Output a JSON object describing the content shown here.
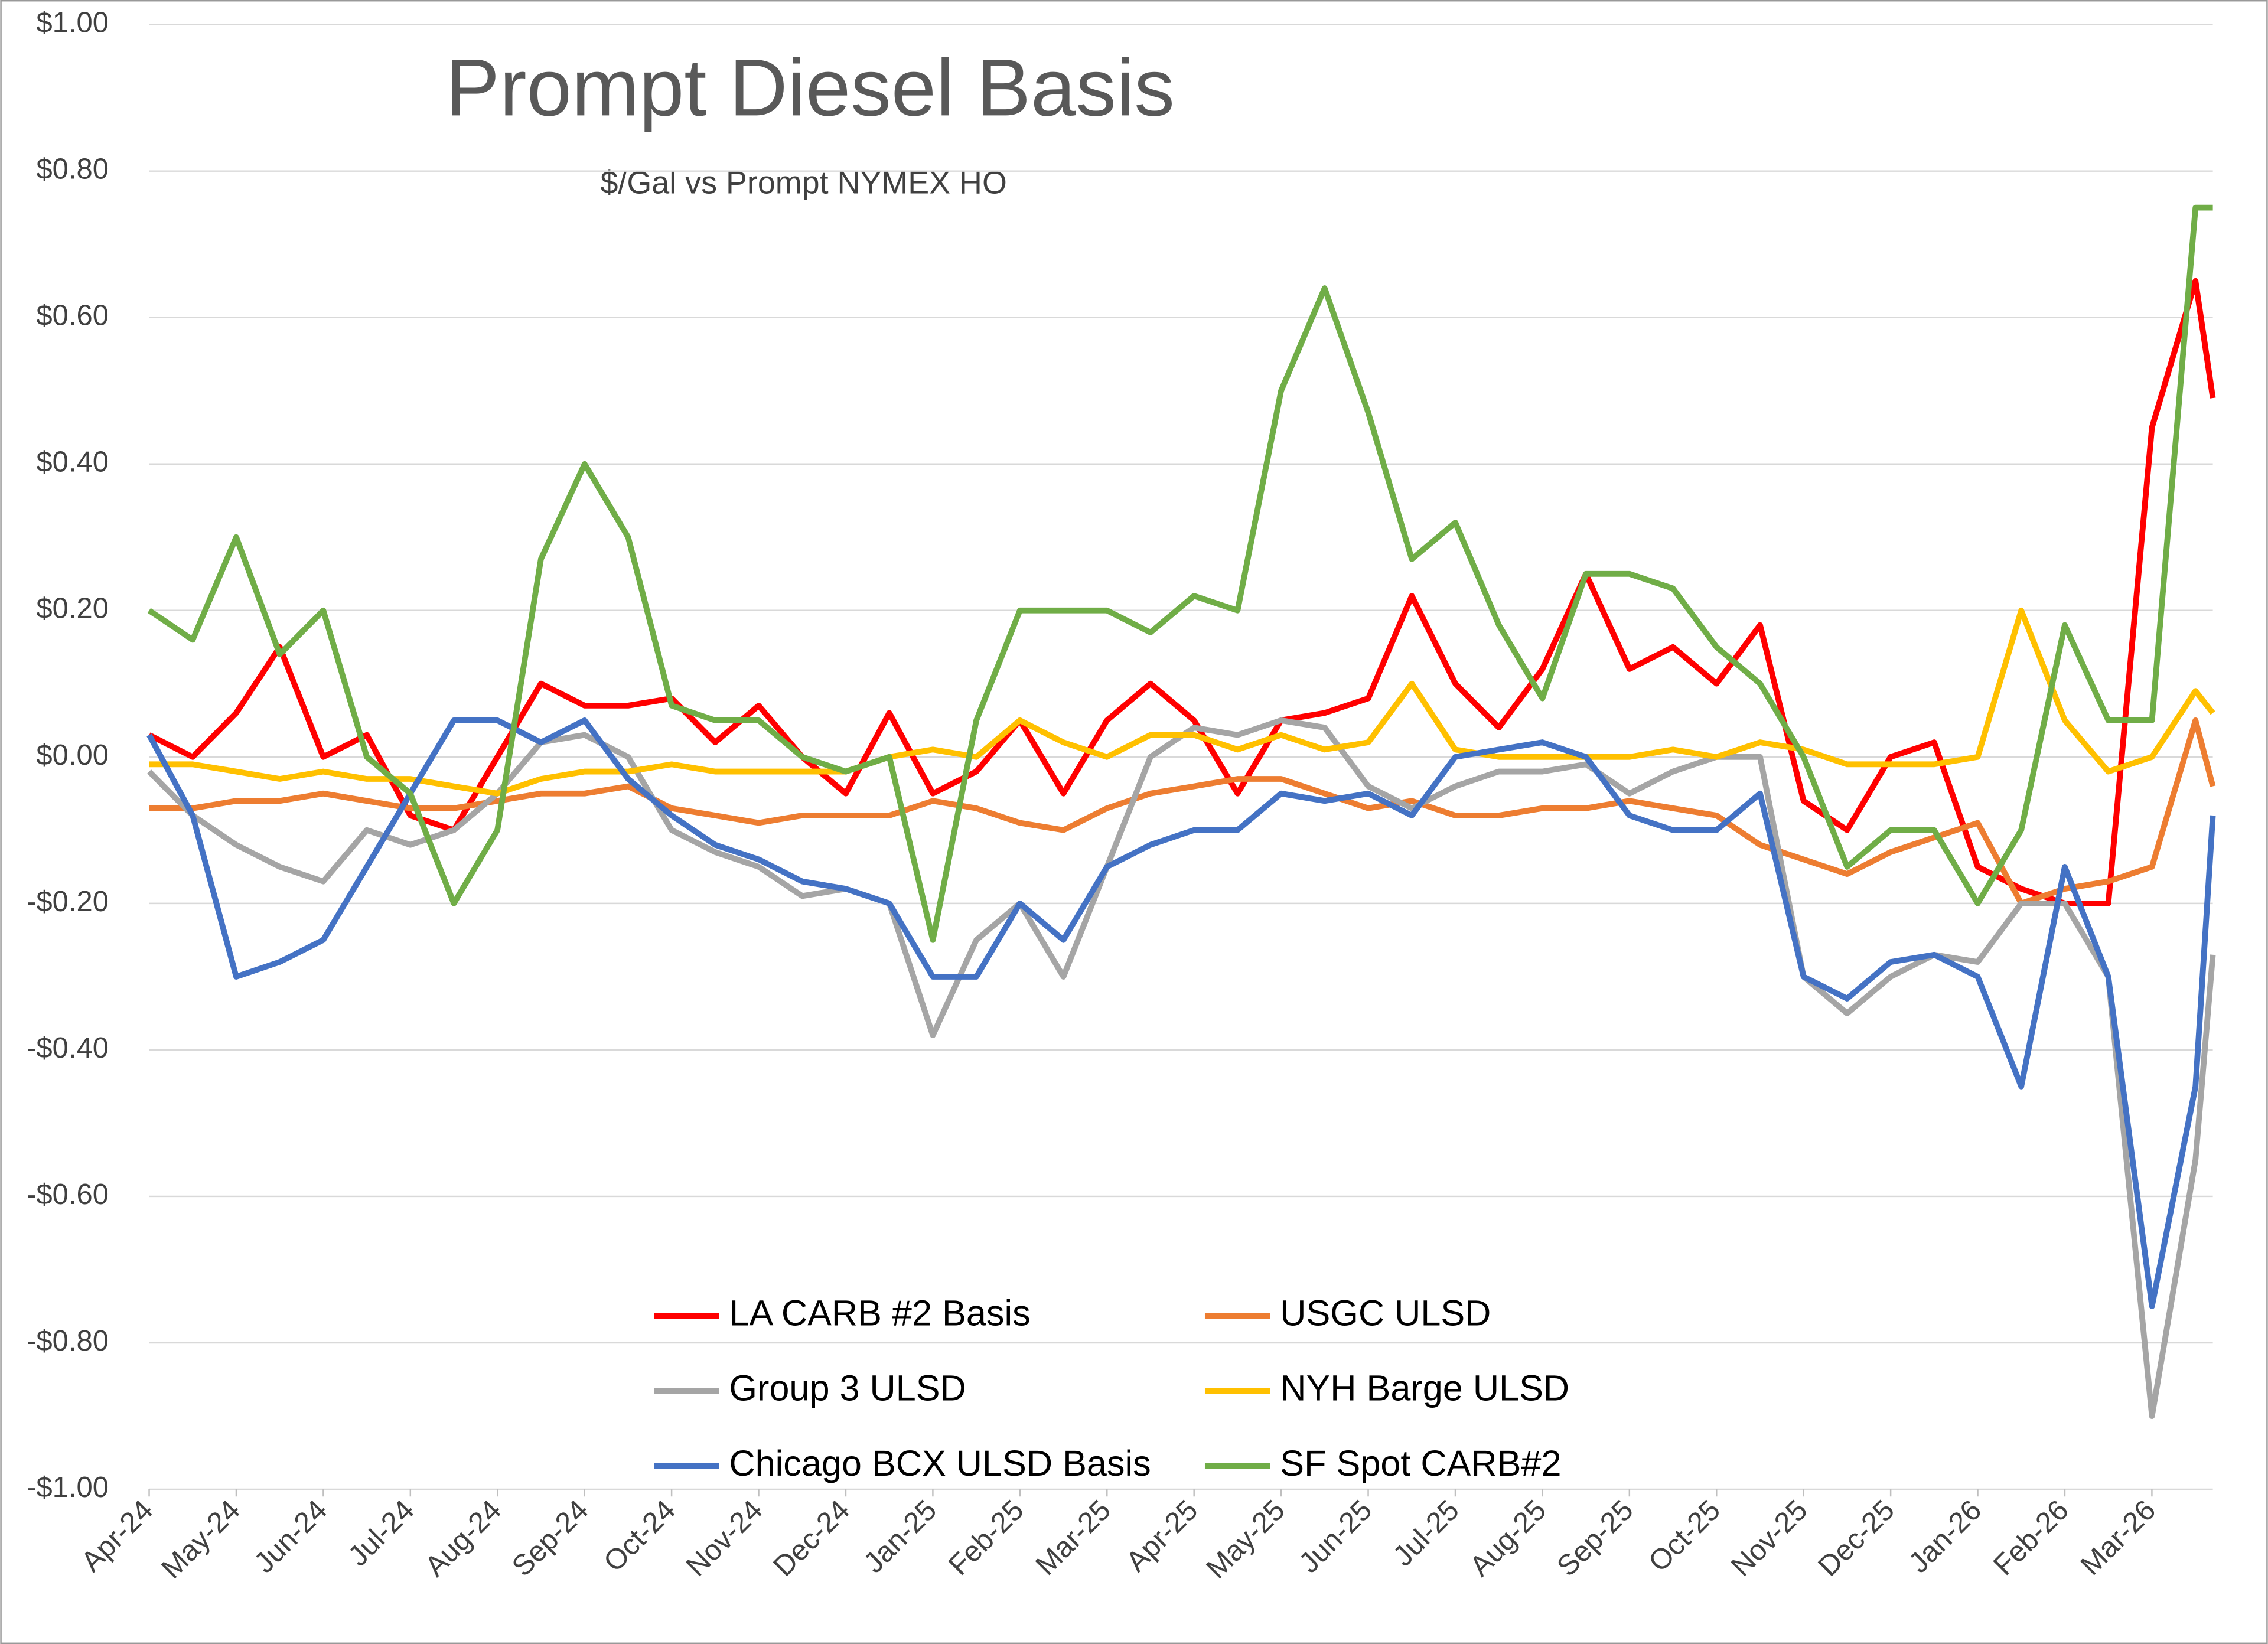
{
  "chart_data": {
    "type": "line",
    "title": "Prompt Diesel Basis",
    "subtitle": "$/Gal vs  Prompt NYMEX HO",
    "x": [
      0,
      0.5,
      1,
      1.5,
      2,
      2.5,
      3,
      3.5,
      4,
      4.5,
      5,
      5.5,
      6,
      6.5,
      7,
      7.5,
      8,
      8.5,
      9,
      9.5,
      10,
      10.5,
      11,
      11.5,
      12,
      12.5,
      13,
      13.5,
      14,
      14.5,
      15,
      15.5,
      16,
      16.5,
      17,
      17.5,
      18,
      18.5,
      19,
      19.5,
      20,
      20.5,
      21,
      21.5,
      22,
      22.5,
      23,
      23.5,
      23.7
    ],
    "xlim": [
      0,
      23.7
    ],
    "xticks": [
      {
        "value": 0,
        "label": "Apr-24"
      },
      {
        "value": 1,
        "label": "May-24"
      },
      {
        "value": 2,
        "label": "Jun-24"
      },
      {
        "value": 3,
        "label": "Jul-24"
      },
      {
        "value": 4,
        "label": "Aug-24"
      },
      {
        "value": 5,
        "label": "Sep-24"
      },
      {
        "value": 6,
        "label": "Oct-24"
      },
      {
        "value": 7,
        "label": "Nov-24"
      },
      {
        "value": 8,
        "label": "Dec-24"
      },
      {
        "value": 9,
        "label": "Jan-25"
      },
      {
        "value": 10,
        "label": "Feb-25"
      },
      {
        "value": 11,
        "label": "Mar-25"
      },
      {
        "value": 12,
        "label": "Apr-25"
      },
      {
        "value": 13,
        "label": "May-25"
      },
      {
        "value": 14,
        "label": "Jun-25"
      },
      {
        "value": 15,
        "label": "Jul-25"
      },
      {
        "value": 16,
        "label": "Aug-25"
      },
      {
        "value": 17,
        "label": "Sep-25"
      },
      {
        "value": 18,
        "label": "Oct-25"
      },
      {
        "value": 19,
        "label": "Nov-25"
      },
      {
        "value": 20,
        "label": "Dec-25"
      },
      {
        "value": 21,
        "label": "Jan-26"
      },
      {
        "value": 22,
        "label": "Feb-26"
      },
      {
        "value": 23,
        "label": "Mar-26"
      }
    ],
    "ylim": [
      -1,
      1
    ],
    "yticks": [
      {
        "value": 1,
        "label": "$1.00"
      },
      {
        "value": 0.8,
        "label": "$0.80"
      },
      {
        "value": 0.6,
        "label": "$0.60"
      },
      {
        "value": 0.4,
        "label": "$0.40"
      },
      {
        "value": 0.2,
        "label": "$0.20"
      },
      {
        "value": 0,
        "label": "$0.00"
      },
      {
        "value": -0.2,
        "label": "-$0.20"
      },
      {
        "value": -0.4,
        "label": "-$0.40"
      },
      {
        "value": -0.6,
        "label": "-$0.60"
      },
      {
        "value": -0.8,
        "label": "-$0.80"
      },
      {
        "value": -1,
        "label": "-$1.00"
      }
    ],
    "grid": true,
    "series": [
      {
        "name": "LA CARB #2 Basis",
        "color": "#ff0000",
        "values": [
          0.03,
          0.0,
          0.06,
          0.15,
          0.0,
          0.03,
          -0.08,
          -0.1,
          0.0,
          0.1,
          0.07,
          0.07,
          0.08,
          0.02,
          0.07,
          0.0,
          -0.05,
          0.06,
          -0.05,
          -0.02,
          0.05,
          -0.05,
          0.05,
          0.1,
          0.05,
          -0.05,
          0.05,
          0.06,
          0.08,
          0.22,
          0.1,
          0.04,
          0.12,
          0.25,
          0.12,
          0.15,
          0.1,
          0.18,
          -0.06,
          -0.1,
          0.0,
          0.02,
          -0.15,
          -0.18,
          -0.2,
          -0.2,
          0.45,
          0.65,
          0.49
        ]
      },
      {
        "name": "USGC ULSD",
        "color": "#ed7d31",
        "values": [
          -0.07,
          -0.07,
          -0.06,
          -0.06,
          -0.05,
          -0.06,
          -0.07,
          -0.07,
          -0.06,
          -0.05,
          -0.05,
          -0.04,
          -0.07,
          -0.08,
          -0.09,
          -0.08,
          -0.08,
          -0.08,
          -0.06,
          -0.07,
          -0.09,
          -0.1,
          -0.07,
          -0.05,
          -0.04,
          -0.03,
          -0.03,
          -0.05,
          -0.07,
          -0.06,
          -0.08,
          -0.08,
          -0.07,
          -0.07,
          -0.06,
          -0.07,
          -0.08,
          -0.12,
          -0.14,
          -0.16,
          -0.13,
          -0.11,
          -0.09,
          -0.2,
          -0.18,
          -0.17,
          -0.15,
          0.05,
          -0.04
        ]
      },
      {
        "name": "Group 3 ULSD",
        "color": "#a5a5a5",
        "values": [
          -0.02,
          -0.08,
          -0.12,
          -0.15,
          -0.17,
          -0.1,
          -0.12,
          -0.1,
          -0.05,
          0.02,
          0.03,
          0.0,
          -0.1,
          -0.13,
          -0.15,
          -0.19,
          -0.18,
          -0.2,
          -0.38,
          -0.25,
          -0.2,
          -0.3,
          -0.15,
          0.0,
          0.04,
          0.03,
          0.05,
          0.04,
          -0.04,
          -0.07,
          -0.04,
          -0.02,
          -0.02,
          -0.01,
          -0.05,
          -0.02,
          0.0,
          0.0,
          -0.3,
          -0.35,
          -0.3,
          -0.27,
          -0.28,
          -0.2,
          -0.2,
          -0.3,
          -0.9,
          -0.55,
          -0.27
        ]
      },
      {
        "name": "NYH Barge ULSD",
        "color": "#ffc000",
        "values": [
          -0.01,
          -0.01,
          -0.02,
          -0.03,
          -0.02,
          -0.03,
          -0.03,
          -0.04,
          -0.05,
          -0.03,
          -0.02,
          -0.02,
          -0.01,
          -0.02,
          -0.02,
          -0.02,
          -0.02,
          0.0,
          0.01,
          0.0,
          0.05,
          0.02,
          0.0,
          0.03,
          0.03,
          0.01,
          0.03,
          0.01,
          0.02,
          0.1,
          0.01,
          0.0,
          0.0,
          0.0,
          0.0,
          0.01,
          0.0,
          0.02,
          0.01,
          -0.01,
          -0.01,
          -0.01,
          0.0,
          0.2,
          0.05,
          -0.02,
          0.0,
          0.09,
          0.06
        ]
      },
      {
        "name": "Chicago BCX ULSD Basis",
        "color": "#4472c4",
        "values": [
          0.03,
          -0.08,
          -0.3,
          -0.28,
          -0.25,
          -0.15,
          -0.05,
          0.05,
          0.05,
          0.02,
          0.05,
          -0.03,
          -0.08,
          -0.12,
          -0.14,
          -0.17,
          -0.18,
          -0.2,
          -0.3,
          -0.3,
          -0.2,
          -0.25,
          -0.15,
          -0.12,
          -0.1,
          -0.1,
          -0.05,
          -0.06,
          -0.05,
          -0.08,
          0.0,
          0.01,
          0.02,
          0.0,
          -0.08,
          -0.1,
          -0.1,
          -0.05,
          -0.3,
          -0.33,
          -0.28,
          -0.27,
          -0.3,
          -0.45,
          -0.15,
          -0.3,
          -0.75,
          -0.45,
          -0.08
        ]
      },
      {
        "name": "SF Spot CARB#2",
        "color": "#70ad47",
        "values": [
          0.2,
          0.16,
          0.3,
          0.14,
          0.2,
          0.0,
          -0.05,
          -0.2,
          -0.1,
          0.27,
          0.4,
          0.3,
          0.07,
          0.05,
          0.05,
          0.0,
          -0.02,
          0.0,
          -0.25,
          0.05,
          0.2,
          0.2,
          0.2,
          0.17,
          0.22,
          0.2,
          0.5,
          0.64,
          0.47,
          0.27,
          0.32,
          0.18,
          0.08,
          0.25,
          0.25,
          0.23,
          0.15,
          0.1,
          0.0,
          -0.15,
          -0.1,
          -0.1,
          -0.2,
          -0.1,
          0.18,
          0.05,
          0.05,
          0.75,
          0.75
        ]
      }
    ]
  }
}
